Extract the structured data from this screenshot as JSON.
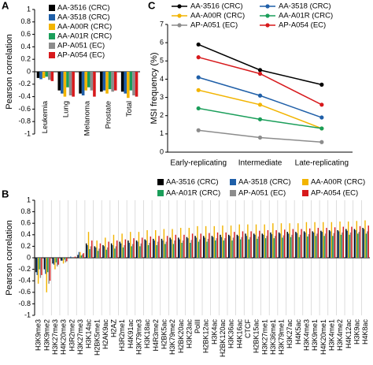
{
  "chart_data": [
    {
      "type": "bar",
      "panel": "A",
      "ylabel": "Pearson correlation",
      "categories": [
        "Leukemia",
        "Lung",
        "Melanoma",
        "Prostate",
        "Total"
      ],
      "series": [
        {
          "name": "AA-3516 (CRC)",
          "color": "#000000",
          "values": [
            -0.1,
            -0.3,
            -0.35,
            -0.32,
            -0.32
          ]
        },
        {
          "name": "AA-3518 (CRC)",
          "color": "#1f5fa8",
          "values": [
            -0.12,
            -0.35,
            -0.38,
            -0.3,
            -0.35
          ]
        },
        {
          "name": "AA-A00R (CRC)",
          "color": "#f2b400",
          "values": [
            -0.1,
            -0.4,
            -0.3,
            -0.35,
            -0.42
          ]
        },
        {
          "name": "AA-A01R (CRC)",
          "color": "#1a9e5a",
          "values": [
            -0.08,
            -0.25,
            -0.25,
            -0.28,
            -0.3
          ]
        },
        {
          "name": "AP-A051 (EC)",
          "color": "#8c8c8c",
          "values": [
            -0.13,
            -0.38,
            -0.3,
            -0.32,
            -0.38
          ]
        },
        {
          "name": "AP-A054 (EC)",
          "color": "#d7191c",
          "values": [
            -0.15,
            -0.4,
            -0.4,
            -0.3,
            -0.4
          ]
        }
      ],
      "ylim": [
        -1,
        1
      ],
      "yticks": [
        -1,
        -0.8,
        -0.6,
        -0.4,
        -0.2,
        0,
        0.2,
        0.4,
        0.6,
        0.8,
        1
      ]
    },
    {
      "type": "line",
      "panel": "C",
      "ylabel": "MSI frequency (%)",
      "categories": [
        "Early-replicating",
        "Intermediate",
        "Late-replicating"
      ],
      "series": [
        {
          "name": "AA-3516 (CRC)",
          "color": "#000000",
          "values": [
            5.9,
            4.5,
            3.7
          ]
        },
        {
          "name": "AA-3518 (CRC)",
          "color": "#1f5fa8",
          "values": [
            4.1,
            3.1,
            1.9
          ]
        },
        {
          "name": "AA-A00R (CRC)",
          "color": "#f2b400",
          "values": [
            3.4,
            2.6,
            1.3
          ]
        },
        {
          "name": "AA-A01R (CRC)",
          "color": "#1a9e5a",
          "values": [
            2.4,
            1.8,
            1.3
          ]
        },
        {
          "name": "AP-A051 (EC)",
          "color": "#8c8c8c",
          "values": [
            1.2,
            0.8,
            0.55
          ]
        },
        {
          "name": "AP-A054 (EC)",
          "color": "#d7191c",
          "values": [
            5.2,
            4.3,
            2.6
          ]
        }
      ],
      "ylim": [
        0,
        7
      ],
      "yticks": [
        0,
        1,
        2,
        3,
        4,
        5,
        6,
        7
      ]
    },
    {
      "type": "bar",
      "panel": "B",
      "ylabel": "Pearson correlation",
      "categories": [
        "H3K9me3",
        "H3K9me2",
        "H3K27me3",
        "H4K20me3",
        "H3R2me2",
        "H3K27me3",
        "H3K14ac",
        "H2BK5me1",
        "H2AK9ac",
        "H2AZ",
        "H3R2me1",
        "H4K91ac",
        "H3K79me3",
        "H3K18ac",
        "H4R3me2",
        "H2BK5ac",
        "H3K79me2",
        "H2BK20ac",
        "H3K23ac",
        "PolII",
        "H2BK12ac",
        "H3K4ac",
        "H2BK120ac",
        "H3K36ac",
        "H4K16ac",
        "CTCF",
        "H2BK15ac",
        "H3K27me1",
        "H3K36me1",
        "H3K79me1",
        "H3K27ac",
        "H4K5ac",
        "H3K4me3",
        "H3K9me1",
        "H4K20me1",
        "H3K4me1",
        "H3K4me2",
        "H4K12ac",
        "H3K9ac",
        "H4K8ac"
      ],
      "series": [
        {
          "name": "AA-3516 (CRC)",
          "color": "#000000",
          "values": [
            -0.25,
            -0.2,
            -0.1,
            -0.05,
            0.0,
            0.05,
            0.25,
            0.2,
            0.22,
            0.25,
            0.28,
            0.3,
            0.3,
            0.32,
            0.33,
            0.33,
            0.35,
            0.35,
            0.36,
            0.38,
            0.38,
            0.38,
            0.4,
            0.4,
            0.4,
            0.42,
            0.42,
            0.42,
            0.44,
            0.44,
            0.45,
            0.45,
            0.46,
            0.46,
            0.47,
            0.48,
            0.48,
            0.5,
            0.5,
            0.52
          ]
        },
        {
          "name": "AA-3518 (CRC)",
          "color": "#1f5fa8",
          "values": [
            -0.3,
            -0.28,
            -0.12,
            -0.05,
            0.02,
            0.1,
            0.22,
            0.18,
            0.2,
            0.22,
            0.25,
            0.26,
            0.28,
            0.3,
            0.3,
            0.3,
            0.32,
            0.32,
            0.34,
            0.35,
            0.35,
            0.36,
            0.36,
            0.38,
            0.38,
            0.38,
            0.4,
            0.4,
            0.41,
            0.42,
            0.42,
            0.43,
            0.44,
            0.44,
            0.45,
            0.46,
            0.46,
            0.47,
            0.48,
            0.5
          ]
        },
        {
          "name": "AA-A00R (CRC)",
          "color": "#f2b400",
          "values": [
            -0.45,
            -0.6,
            -0.2,
            -0.1,
            0.0,
            0.1,
            0.45,
            0.3,
            0.35,
            0.4,
            0.42,
            0.45,
            0.45,
            0.48,
            0.48,
            0.5,
            0.5,
            0.52,
            0.52,
            0.55,
            0.55,
            0.55,
            0.56,
            0.56,
            0.58,
            0.58,
            0.58,
            0.58,
            0.6,
            0.6,
            0.6,
            0.6,
            0.62,
            0.62,
            0.62,
            0.62,
            0.63,
            0.63,
            0.64,
            0.65
          ]
        },
        {
          "name": "AA-A01R (CRC)",
          "color": "#1a9e5a",
          "values": [
            -0.2,
            -0.25,
            -0.08,
            -0.03,
            0.0,
            0.04,
            0.15,
            0.12,
            0.14,
            0.16,
            0.18,
            0.2,
            0.2,
            0.22,
            0.22,
            0.24,
            0.24,
            0.26,
            0.26,
            0.28,
            0.28,
            0.3,
            0.3,
            0.3,
            0.32,
            0.32,
            0.33,
            0.34,
            0.34,
            0.35,
            0.36,
            0.36,
            0.37,
            0.38,
            0.38,
            0.38,
            0.4,
            0.4,
            0.42,
            0.42
          ]
        },
        {
          "name": "AP-A051 (EC)",
          "color": "#8c8c8c",
          "values": [
            -0.35,
            -0.45,
            -0.15,
            -0.08,
            0.0,
            0.06,
            0.2,
            0.16,
            0.18,
            0.2,
            0.22,
            0.24,
            0.25,
            0.26,
            0.28,
            0.28,
            0.3,
            0.3,
            0.31,
            0.32,
            0.33,
            0.34,
            0.34,
            0.35,
            0.36,
            0.36,
            0.37,
            0.38,
            0.38,
            0.39,
            0.4,
            0.4,
            0.41,
            0.42,
            0.42,
            0.43,
            0.44,
            0.44,
            0.45,
            0.46
          ]
        },
        {
          "name": "AP-A054 (EC)",
          "color": "#d7191c",
          "values": [
            -0.3,
            -0.4,
            -0.12,
            -0.06,
            0.02,
            0.08,
            0.3,
            0.25,
            0.28,
            0.3,
            0.32,
            0.34,
            0.35,
            0.37,
            0.38,
            0.38,
            0.4,
            0.4,
            0.42,
            0.42,
            0.43,
            0.44,
            0.44,
            0.45,
            0.46,
            0.46,
            0.47,
            0.48,
            0.48,
            0.49,
            0.5,
            0.5,
            0.51,
            0.52,
            0.52,
            0.53,
            0.54,
            0.54,
            0.55,
            0.56
          ]
        }
      ],
      "ylim": [
        -1,
        1
      ],
      "yticks": [
        -1,
        -0.8,
        -0.6,
        -0.4,
        -0.2,
        0,
        0.2,
        0.4,
        0.6,
        0.8,
        1
      ]
    }
  ]
}
